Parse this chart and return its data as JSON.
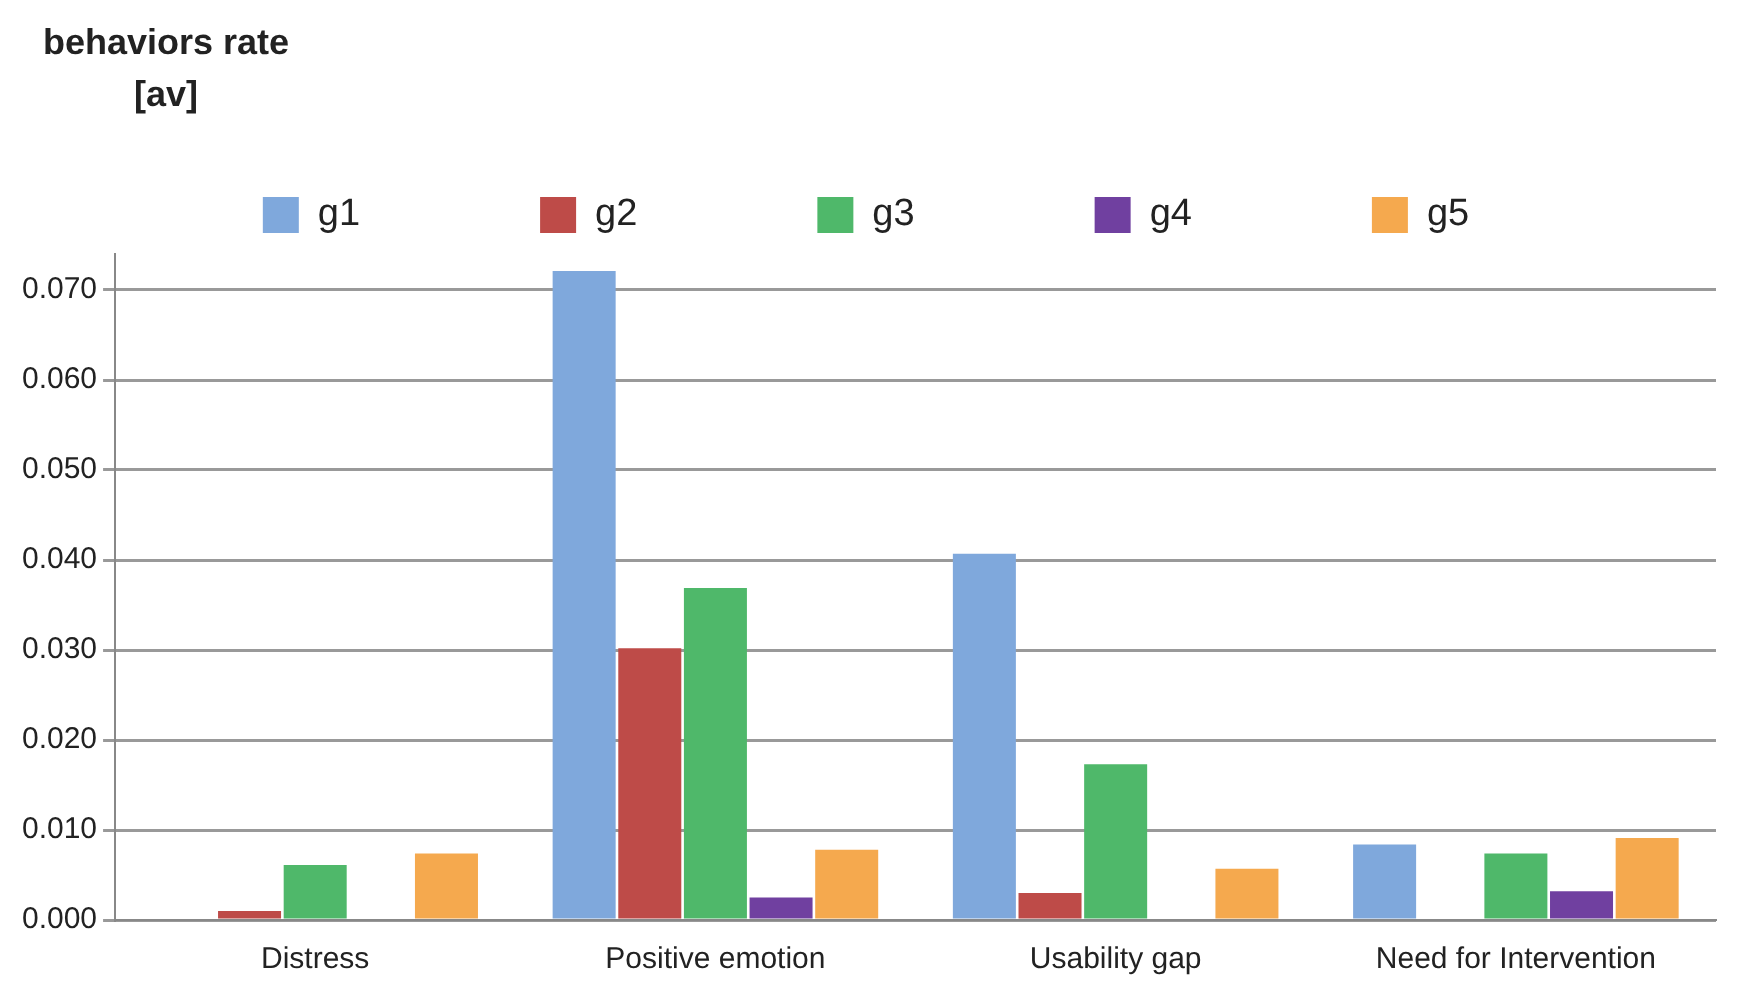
{
  "chart_data": {
    "type": "bar",
    "ylabel": "behaviors rate [av]",
    "categories": [
      "Distress",
      "Positive emotion",
      "Usability gap",
      "Need for Intervention"
    ],
    "series": [
      {
        "name": "g1",
        "color": "#7fa8dc",
        "values": [
          0,
          0.0721,
          0.0407,
          0.0084
        ]
      },
      {
        "name": "g2",
        "color": "#be4b48",
        "values": [
          0.001,
          0.0302,
          0.003,
          0
        ]
      },
      {
        "name": "g3",
        "color": "#4fb86a",
        "values": [
          0.0061,
          0.0369,
          0.0173,
          0.0074
        ]
      },
      {
        "name": "g4",
        "color": "#7040a0",
        "values": [
          0,
          0.0025,
          0,
          0.0032
        ]
      },
      {
        "name": "g5",
        "color": "#f5a94e",
        "values": [
          0.0074,
          0.0078,
          0.0057,
          0.0091
        ]
      }
    ],
    "ylim": [
      0,
      0.074
    ],
    "yticks": [
      {
        "value": 0,
        "label": "0.000"
      },
      {
        "value": 0.01,
        "label": "0.010"
      },
      {
        "value": 0.02,
        "label": "0.020"
      },
      {
        "value": 0.03,
        "label": "0.030"
      },
      {
        "value": 0.04,
        "label": "0.040"
      },
      {
        "value": 0.05,
        "label": "0.050"
      },
      {
        "value": 0.06,
        "label": "0.060"
      },
      {
        "value": 0.07,
        "label": "0.070"
      }
    ],
    "grid": "y",
    "legend": "top"
  }
}
